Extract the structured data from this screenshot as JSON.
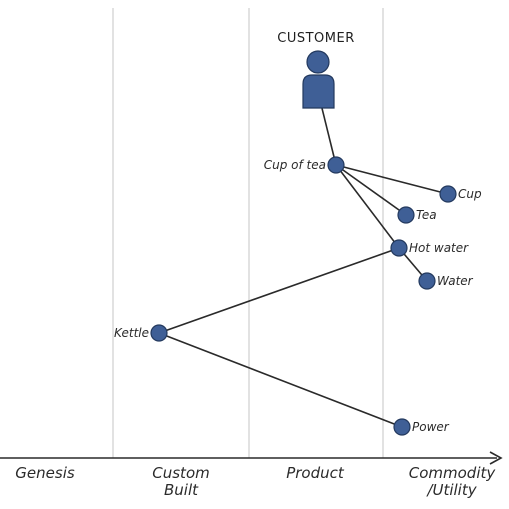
{
  "customer": {
    "label": "CUSTOMER"
  },
  "stages": [
    {
      "lines": [
        "Genesis"
      ]
    },
    {
      "lines": [
        "Custom",
        "Built"
      ]
    },
    {
      "lines": [
        "Product"
      ]
    },
    {
      "lines": [
        "Commodity",
        "/Utility"
      ]
    }
  ],
  "components": [
    {
      "id": "cup-of-tea",
      "label": "Cup of tea"
    },
    {
      "id": "cup",
      "label": "Cup"
    },
    {
      "id": "tea",
      "label": "Tea"
    },
    {
      "id": "hot-water",
      "label": "Hot water"
    },
    {
      "id": "water",
      "label": "Water"
    },
    {
      "id": "kettle",
      "label": "Kettle"
    },
    {
      "id": "power",
      "label": "Power"
    }
  ],
  "links": [
    [
      "customer",
      "cup-of-tea"
    ],
    [
      "cup-of-tea",
      "cup"
    ],
    [
      "cup-of-tea",
      "tea"
    ],
    [
      "cup-of-tea",
      "hot-water"
    ],
    [
      "hot-water",
      "water"
    ],
    [
      "hot-water",
      "kettle"
    ],
    [
      "kettle",
      "power"
    ]
  ],
  "colors": {
    "node": "#3f5f96",
    "node_edge": "#23395e",
    "line": "#2a2a2a",
    "grid": "#cfcfcf"
  }
}
